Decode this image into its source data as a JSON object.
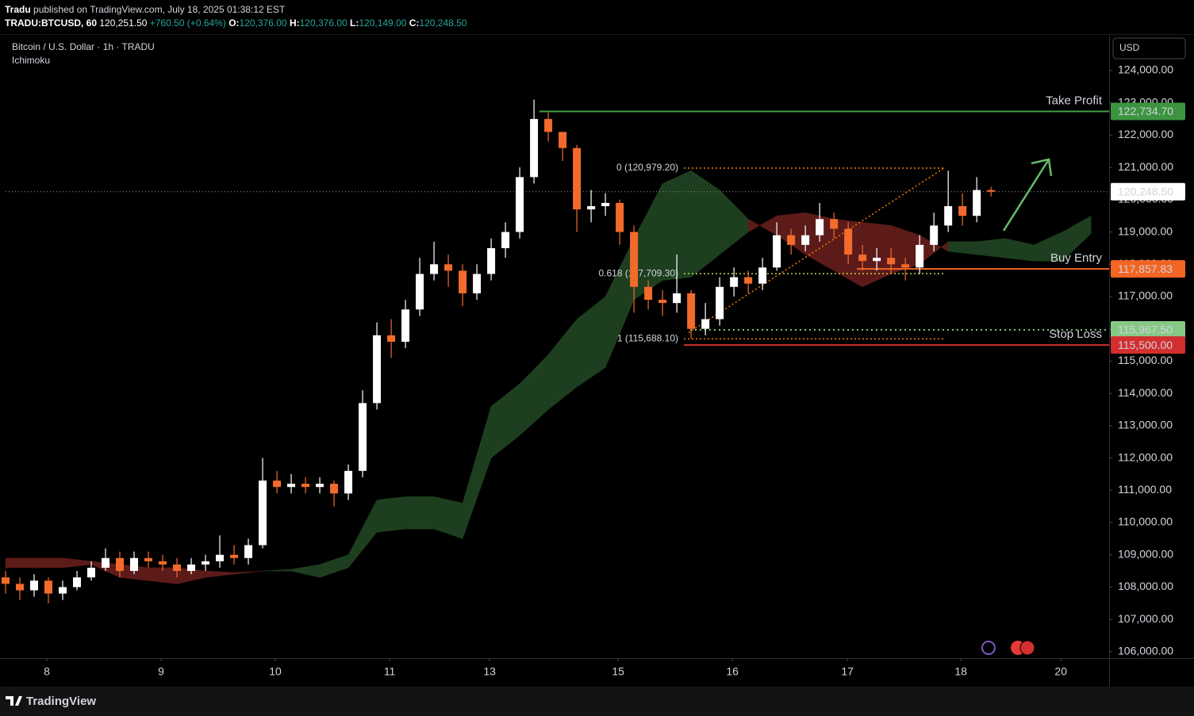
{
  "header": {
    "author": "Tradu",
    "published": "published on TradingView.com, July 18, 2025 01:38:12 EST",
    "symbol": "TRADU:BTCUSD, 60",
    "price": "120,251.50",
    "change": "+760.50 (+0.64%)",
    "o_label": "O:",
    "o": "120,376.00",
    "h_label": "H:",
    "h": "120,376.00",
    "l_label": "L:",
    "l": "120,149.00",
    "c_label": "C:",
    "c": "120,248.50",
    "legend": "Bitcoin / U.S. Dollar · 1h · TRADU",
    "indicator": "Ichimoku",
    "currency": "USD",
    "footer": "TradingView"
  },
  "chart_data": {
    "type": "candlestick",
    "x": [
      0,
      3,
      6,
      9,
      12,
      15,
      18,
      21,
      24,
      27,
      30,
      33,
      36,
      39,
      42,
      45,
      48,
      51,
      54,
      57,
      60,
      63,
      66,
      69,
      72,
      75,
      78,
      81,
      84,
      87,
      90,
      93,
      96,
      99,
      102,
      105,
      108,
      111,
      114,
      117,
      120,
      123,
      126,
      129,
      132,
      135,
      138,
      141,
      144,
      147,
      150,
      153,
      156,
      159,
      162,
      165,
      168,
      171,
      174,
      177,
      180,
      183,
      186,
      189,
      192,
      195,
      198,
      201,
      204,
      207
    ],
    "open": [
      108300,
      108100,
      107900,
      108200,
      107800,
      108000,
      108300,
      108600,
      108900,
      108500,
      108900,
      108800,
      108700,
      108500,
      108700,
      108800,
      109000,
      108900,
      109300,
      111300,
      111100,
      111200,
      111100,
      111200,
      110900,
      111600,
      113700,
      115800,
      115600,
      116600,
      117700,
      118000,
      117800,
      117100,
      117700,
      118500,
      119000,
      120700,
      122500,
      122100,
      121600,
      119700,
      119800,
      119900,
      119000,
      117300,
      116900,
      116800,
      117100,
      116000,
      116300,
      117300,
      117600,
      117400,
      117900,
      118900,
      118600,
      118900,
      119400,
      119100,
      118300,
      118100,
      118200,
      118000,
      117900,
      118600,
      119200,
      119800,
      119500,
      120300
    ],
    "high": [
      108500,
      108300,
      108400,
      108300,
      108200,
      108500,
      108800,
      109200,
      109100,
      109100,
      109100,
      109000,
      108900,
      108900,
      109000,
      109600,
      109300,
      109500,
      112000,
      111600,
      111500,
      111400,
      111400,
      111300,
      111800,
      114100,
      116200,
      116300,
      116900,
      118200,
      118700,
      118300,
      118000,
      118000,
      118800,
      119300,
      121000,
      123100,
      122700,
      122000,
      121700,
      120300,
      120200,
      120000,
      119200,
      117500,
      117200,
      118300,
      117200,
      116800,
      117600,
      117900,
      117800,
      118200,
      119300,
      119100,
      119200,
      119900,
      119600,
      119300,
      118600,
      118500,
      118500,
      118200,
      118900,
      119600,
      120900,
      120200,
      120700,
      120400
    ],
    "low": [
      107800,
      107600,
      107700,
      107500,
      107600,
      107900,
      108200,
      108500,
      108300,
      108400,
      108600,
      108500,
      108300,
      108400,
      108500,
      108600,
      108700,
      108700,
      109200,
      110900,
      110900,
      110900,
      110900,
      110500,
      110700,
      111400,
      113500,
      115100,
      115400,
      116400,
      117500,
      117300,
      116700,
      116900,
      117500,
      118200,
      118800,
      120500,
      121800,
      121200,
      119000,
      119300,
      119500,
      118600,
      116500,
      116600,
      116400,
      116500,
      115700,
      115800,
      116100,
      117000,
      117100,
      117200,
      117800,
      118300,
      118400,
      118700,
      118800,
      118000,
      117800,
      117800,
      117700,
      117500,
      117700,
      118400,
      119000,
      119200,
      119300,
      120100
    ],
    "close": [
      108100,
      107900,
      108200,
      107800,
      108000,
      108300,
      108600,
      108900,
      108500,
      108900,
      108800,
      108700,
      108500,
      108700,
      108800,
      109000,
      108900,
      109300,
      111300,
      111100,
      111200,
      111100,
      111200,
      110900,
      111600,
      113700,
      115800,
      115600,
      116600,
      117700,
      118000,
      117800,
      117100,
      117700,
      118500,
      119000,
      120700,
      122500,
      122100,
      121600,
      119700,
      119800,
      119900,
      119000,
      117300,
      116900,
      116800,
      117100,
      116000,
      116300,
      117300,
      117600,
      117400,
      117900,
      118900,
      118600,
      118900,
      119400,
      119100,
      118300,
      118100,
      118200,
      118000,
      117900,
      118600,
      119200,
      119800,
      119500,
      120300,
      120248.5
    ],
    "up_color": "#ffffff",
    "down_color": "#f26b2c",
    "cloud": {
      "x": [
        0,
        6,
        12,
        18,
        24,
        30,
        36,
        42,
        48,
        54,
        60,
        66,
        72,
        78,
        84,
        90,
        96,
        102,
        108,
        114,
        120,
        126,
        132,
        138,
        144,
        150,
        156,
        162,
        168,
        174,
        180,
        186,
        192,
        198,
        204,
        210,
        216,
        222,
        228
      ],
      "span_a": [
        108600,
        108600,
        108600,
        108700,
        108300,
        108200,
        108100,
        108300,
        108400,
        108500,
        108550,
        108700,
        109000,
        110700,
        110800,
        110800,
        110600,
        113600,
        114300,
        115200,
        116300,
        117000,
        118800,
        120500,
        120900,
        120300,
        119400,
        118900,
        118300,
        117800,
        117300,
        117700,
        118000,
        118700,
        118700,
        118800,
        118600,
        119000,
        119500
      ],
      "span_b": [
        108900,
        108900,
        108900,
        108800,
        108700,
        108600,
        108600,
        108500,
        108450,
        108500,
        108500,
        108300,
        108600,
        109700,
        109800,
        109800,
        109500,
        112000,
        112700,
        113500,
        114200,
        114800,
        116900,
        117500,
        117600,
        118300,
        119000,
        119500,
        119600,
        119400,
        119300,
        119200,
        118900,
        118400,
        118300,
        118200,
        118100,
        118100,
        118950
      ],
      "up_color": "#1d3f1f",
      "down_color": "#5c1b19"
    },
    "fib": [
      {
        "label": "0 (120,979.20)",
        "value": 120979.2,
        "color": "#f57c00"
      },
      {
        "label": "0.618 (117,709.30)",
        "value": 117709.3,
        "color": "#c6d443"
      },
      {
        "label": "1 (115,688.10)",
        "value": 115688.1,
        "color": "#f57c00"
      }
    ],
    "levels": [
      {
        "label": "Take Profit",
        "value": 122734.7,
        "value_label": "122,734.70",
        "color": "#43a047",
        "box_color": "#3d9440",
        "text_color": "#ffffff"
      },
      {
        "label": "Buy Entry",
        "value": 117857.83,
        "value_label": "117,857.83",
        "color": "#f26522",
        "box_color": "#f26522",
        "text_color": "#ffffff"
      },
      {
        "value": 115967.5,
        "value_label": "115,967.50",
        "color": "#7cc576",
        "box_color": "#86c985",
        "text_color": "#000000"
      },
      {
        "label": "Stop Loss",
        "value": 115500,
        "value_label": "115,500.00",
        "color": "#d32f2f",
        "box_color": "#d32f2f",
        "text_color": "#ffffff"
      }
    ],
    "last_price": {
      "value": 120248.5,
      "label": "120,248.50"
    },
    "xlim": [
      0,
      231.8
    ],
    "ylim": [
      105800,
      125130
    ],
    "xticks": [
      {
        "value": 8.67,
        "label": "8"
      },
      {
        "value": 32.67,
        "label": "9"
      },
      {
        "value": 56.67,
        "label": "10"
      },
      {
        "value": 80.67,
        "label": "11"
      },
      {
        "value": 101.67,
        "label": "13"
      },
      {
        "value": 128.67,
        "label": "15"
      },
      {
        "value": 152.67,
        "label": "16"
      },
      {
        "value": 176.83,
        "label": "17"
      },
      {
        "value": 200.67,
        "label": "18"
      },
      {
        "value": 221.67,
        "label": "20"
      }
    ],
    "yticks": [
      {
        "value": 106000,
        "label": "106,000.00"
      },
      {
        "value": 107000,
        "label": "107,000.00"
      },
      {
        "value": 108000,
        "label": "108,000.00"
      },
      {
        "value": 109000,
        "label": "109,000.00"
      },
      {
        "value": 110000,
        "label": "110,000.00"
      },
      {
        "value": 111000,
        "label": "111,000.00"
      },
      {
        "value": 112000,
        "label": "112,000.00"
      },
      {
        "value": 113000,
        "label": "113,000.00"
      },
      {
        "value": 114000,
        "label": "114,000.00"
      },
      {
        "value": 115000,
        "label": "115,000.00"
      },
      {
        "value": 116000,
        "label": "116,000.00"
      },
      {
        "value": 117000,
        "label": "117,000.00"
      },
      {
        "value": 118000,
        "label": "118,000.00"
      },
      {
        "value": 119000,
        "label": "119,000.00"
      },
      {
        "value": 120000,
        "label": "120,000.00"
      },
      {
        "value": 121000,
        "label": "121,000.00"
      },
      {
        "value": 122000,
        "label": "122,000.00"
      },
      {
        "value": 123000,
        "label": "123,000.00"
      },
      {
        "value": 124000,
        "label": "124,000.00"
      }
    ],
    "grid": false
  }
}
